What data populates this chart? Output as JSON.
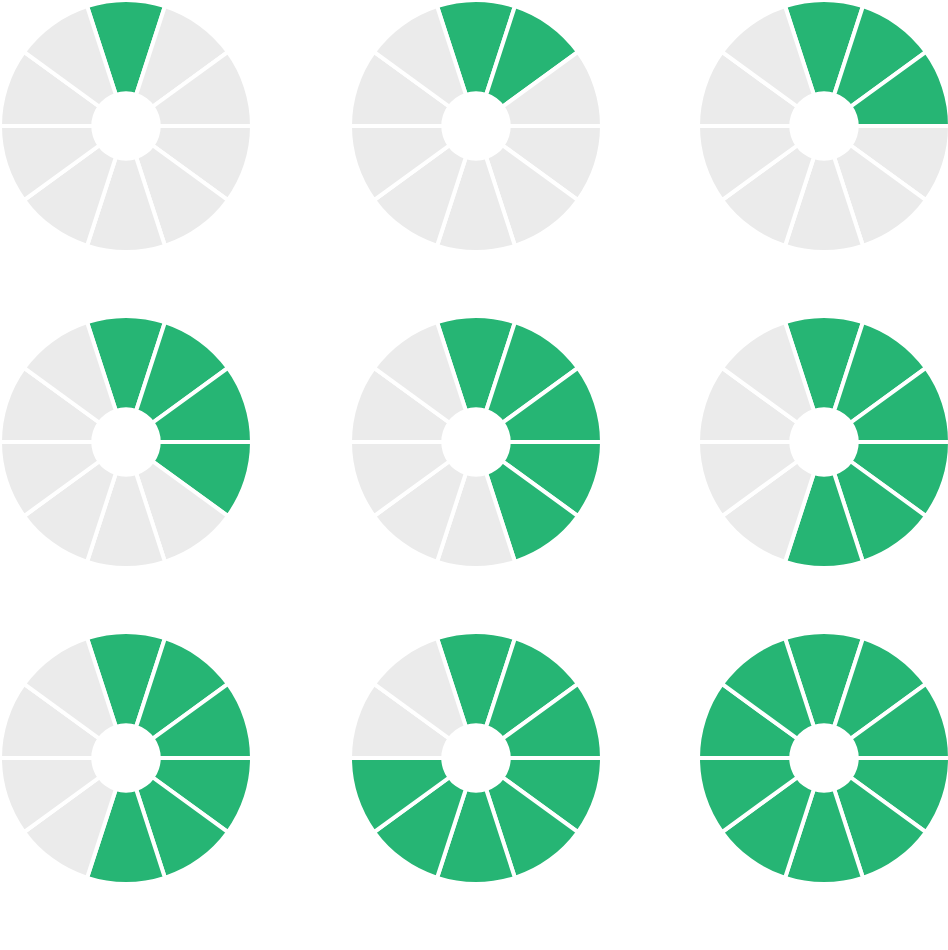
{
  "chart_data": [
    {
      "type": "donut",
      "categories": [
        null,
        null,
        null,
        null,
        null,
        null,
        null,
        null,
        null,
        null
      ],
      "values": [
        10,
        10,
        10,
        10,
        10,
        10,
        10,
        10,
        10,
        10
      ],
      "colors": [
        "#26b574",
        "#ebebeb",
        "#ebebeb",
        "#ebebeb",
        "#ebebeb",
        "#ebebeb",
        "#ebebeb",
        "#ebebeb",
        "#ebebeb",
        "#ebebeb"
      ]
    },
    {
      "type": "donut",
      "categories": [
        null,
        null,
        null,
        null,
        null,
        null,
        null,
        null,
        null,
        null
      ],
      "values": [
        10,
        10,
        10,
        10,
        10,
        10,
        10,
        10,
        10,
        10
      ],
      "colors": [
        "#26b574",
        "#26b574",
        "#ebebeb",
        "#ebebeb",
        "#ebebeb",
        "#ebebeb",
        "#ebebeb",
        "#ebebeb",
        "#ebebeb",
        "#ebebeb"
      ]
    },
    {
      "type": "donut",
      "categories": [
        null,
        null,
        null,
        null,
        null,
        null,
        null,
        null,
        null,
        null
      ],
      "values": [
        10,
        10,
        10,
        10,
        10,
        10,
        10,
        10,
        10,
        10
      ],
      "colors": [
        "#26b574",
        "#26b574",
        "#26b574",
        "#ebebeb",
        "#ebebeb",
        "#ebebeb",
        "#ebebeb",
        "#ebebeb",
        "#ebebeb",
        "#ebebeb"
      ]
    },
    {
      "type": "donut",
      "categories": [
        null,
        null,
        null,
        null,
        null,
        null,
        null,
        null,
        null,
        null
      ],
      "values": [
        10,
        10,
        10,
        10,
        10,
        10,
        10,
        10,
        10,
        10
      ],
      "colors": [
        "#26b574",
        "#26b574",
        "#26b574",
        "#26b574",
        "#ebebeb",
        "#ebebeb",
        "#ebebeb",
        "#ebebeb",
        "#ebebeb",
        "#ebebeb"
      ]
    },
    {
      "type": "donut",
      "categories": [
        null,
        null,
        null,
        null,
        null,
        null,
        null,
        null,
        null,
        null
      ],
      "values": [
        10,
        10,
        10,
        10,
        10,
        10,
        10,
        10,
        10,
        10
      ],
      "colors": [
        "#26b574",
        "#26b574",
        "#26b574",
        "#26b574",
        "#26b574",
        "#ebebeb",
        "#ebebeb",
        "#ebebeb",
        "#ebebeb",
        "#ebebeb"
      ]
    },
    {
      "type": "donut",
      "categories": [
        null,
        null,
        null,
        null,
        null,
        null,
        null,
        null,
        null,
        null
      ],
      "values": [
        10,
        10,
        10,
        10,
        10,
        10,
        10,
        10,
        10,
        10
      ],
      "colors": [
        "#26b574",
        "#26b574",
        "#26b574",
        "#26b574",
        "#26b574",
        "#26b574",
        "#ebebeb",
        "#ebebeb",
        "#ebebeb",
        "#ebebeb"
      ]
    },
    {
      "type": "donut",
      "categories": [
        null,
        null,
        null,
        null,
        null,
        null,
        null,
        null,
        null,
        null
      ],
      "values": [
        10,
        10,
        10,
        10,
        10,
        10,
        10,
        10,
        10,
        10
      ],
      "colors": [
        "#26b574",
        "#26b574",
        "#26b574",
        "#26b574",
        "#26b574",
        "#26b574",
        "#ebebeb",
        "#ebebeb",
        "#ebebeb",
        "#ebebeb"
      ]
    },
    {
      "type": "donut",
      "categories": [
        null,
        null,
        null,
        null,
        null,
        null,
        null,
        null,
        null,
        null
      ],
      "values": [
        10,
        10,
        10,
        10,
        10,
        10,
        10,
        10,
        10,
        10
      ],
      "colors": [
        "#26b574",
        "#26b574",
        "#26b574",
        "#26b574",
        "#26b574",
        "#26b574",
        "#26b574",
        "#26b574",
        "#ebebeb",
        "#ebebeb"
      ]
    },
    {
      "type": "donut",
      "categories": [
        null,
        null,
        null,
        null,
        null,
        null,
        null,
        null,
        null,
        null
      ],
      "values": [
        10,
        10,
        10,
        10,
        10,
        10,
        10,
        10,
        10,
        10
      ],
      "colors": [
        "#26b574",
        "#26b574",
        "#26b574",
        "#26b574",
        "#26b574",
        "#26b574",
        "#26b574",
        "#26b574",
        "#26b574",
        "#26b574"
      ]
    }
  ]
}
